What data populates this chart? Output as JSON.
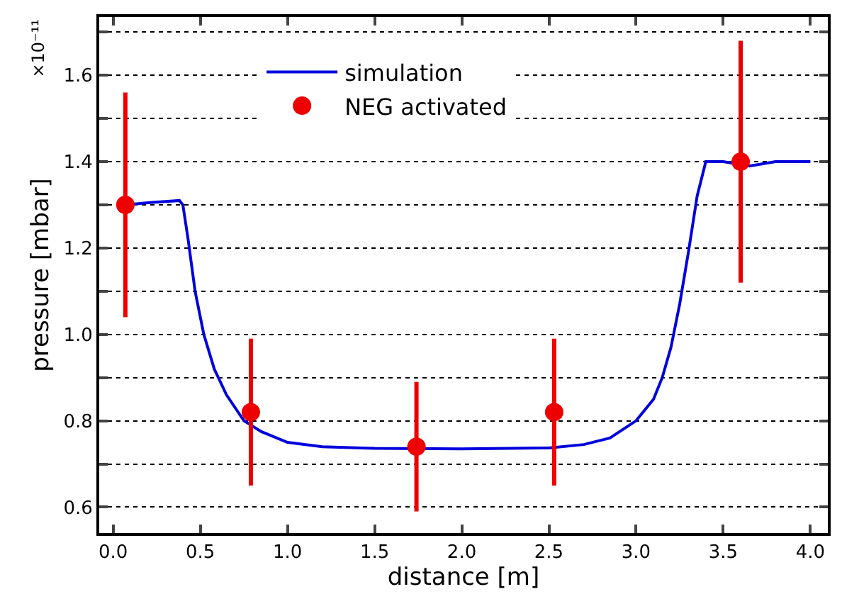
{
  "chart_data": {
    "type": "scatter",
    "xlabel": "distance [m]",
    "ylabel": "pressure [mbar]",
    "annotations": [
      "×10⁻¹¹"
    ],
    "xlim": [
      -0.08,
      4.1
    ],
    "xticks": [
      {
        "value": 0,
        "label": "0.0"
      },
      {
        "value": 0.5,
        "label": "0.5"
      },
      {
        "value": 1,
        "label": "1.0"
      },
      {
        "value": 1.5,
        "label": "1.5"
      },
      {
        "value": 2,
        "label": "2.0"
      },
      {
        "value": 2.5,
        "label": "2.5"
      },
      {
        "value": 3,
        "label": "3.0"
      },
      {
        "value": 3.5,
        "label": "3.5"
      },
      {
        "value": 4,
        "label": "4.0"
      }
    ],
    "ylim": [
      0.54,
      1.735
    ],
    "yticks": [
      0.6,
      {
        "value": 0.7,
        "label": null
      },
      0.8,
      {
        "value": 0.9,
        "label": null
      },
      {
        "value": 1.0,
        "label": "1.0"
      },
      {
        "value": 1.1,
        "label": null
      },
      1.2,
      {
        "value": 1.3,
        "label": null
      },
      1.4,
      {
        "value": 1.5,
        "label": null
      },
      1.6,
      {
        "value": 1.7,
        "label": null
      }
    ],
    "grid": "y",
    "legend": "top",
    "marker": "circle",
    "series": [
      {
        "name": "simulation",
        "type": "line",
        "color": "#0000dd",
        "marker": "none",
        "line_style": "solid",
        "x": [
          0.07,
          0.2,
          0.38,
          0.4,
          0.43,
          0.47,
          0.52,
          0.58,
          0.65,
          0.75,
          0.85,
          1.0,
          1.2,
          1.5,
          2.0,
          2.5,
          2.7,
          2.85,
          3.0,
          3.1,
          3.15,
          3.2,
          3.25,
          3.3,
          3.35,
          3.4,
          3.5,
          3.65,
          3.8,
          4.0
        ],
        "values": [
          1.3,
          1.305,
          1.31,
          1.3,
          1.22,
          1.1,
          1.0,
          0.92,
          0.86,
          0.8,
          0.775,
          0.75,
          0.74,
          0.736,
          0.735,
          0.737,
          0.745,
          0.76,
          0.8,
          0.85,
          0.9,
          0.97,
          1.07,
          1.19,
          1.32,
          1.4,
          1.4,
          1.39,
          1.4,
          1.4
        ]
      },
      {
        "name": "NEG activated",
        "color": "#ee0000",
        "x": [
          0.07,
          0.79,
          1.74,
          2.53,
          3.6
        ],
        "values": [
          1.3,
          0.82,
          0.74,
          0.82,
          1.4
        ],
        "errors": [
          [
            1.04,
            1.56
          ],
          [
            0.65,
            0.99
          ],
          [
            0.59,
            0.89
          ],
          [
            0.65,
            0.99
          ],
          [
            1.12,
            1.68
          ]
        ]
      }
    ]
  }
}
